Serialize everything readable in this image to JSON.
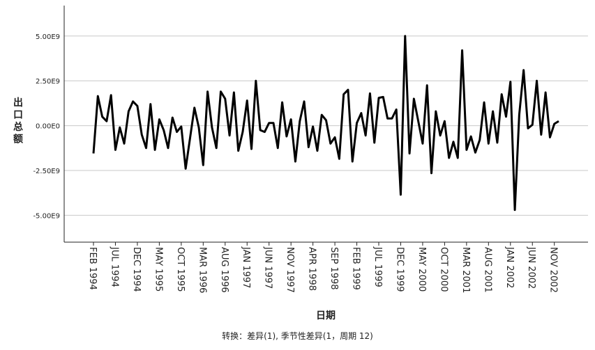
{
  "chart_data": {
    "type": "line",
    "ylabel": "出口总额",
    "xlabel": "日期",
    "footnote": "转换：差异(1), 季节性差异(1，周期 12)",
    "y_ticks": [
      5000000000.0,
      2500000000.0,
      0,
      -2500000000.0,
      -5000000000.0
    ],
    "y_tick_labels": [
      "5.00E9",
      "2.50E9",
      "0.00E0",
      "-2.50E9",
      "-5.00E9"
    ],
    "ylim": [
      -6500000000.0,
      6700000000.0
    ],
    "grid": true,
    "x_tick_labels": [
      "FEB 1994",
      "JUL 1994",
      "DEC 1994",
      "MAY 1995",
      "OCT 1995",
      "MAR 1996",
      "AUG 1996",
      "JAN 1997",
      "JUN 1997",
      "NOV 1997",
      "APR 1998",
      "SEP 1998",
      "FEB 1999",
      "JUL 1999",
      "DEC 1999",
      "MAY 2000",
      "OCT 2000",
      "MAR 2001",
      "AUG 2001",
      "JAN 2002",
      "JUN 2002",
      "NOV 2002"
    ],
    "x_start": "1994-02",
    "x_end": "2002-12",
    "series": [
      {
        "color": "#000000",
        "values": [
          -1550000000.0,
          1650000000.0,
          500000000.0,
          250000000.0,
          1700000000.0,
          -1350000000.0,
          -100000000.0,
          -1000000000.0,
          800000000.0,
          1350000000.0,
          1100000000.0,
          -500000000.0,
          -1250000000.0,
          1200000000.0,
          -1350000000.0,
          350000000.0,
          -250000000.0,
          -1250000000.0,
          450000000.0,
          -350000000.0,
          -50000000.0,
          -2400000000.0,
          -700000000.0,
          1000000000.0,
          -100000000.0,
          -2200000000.0,
          1900000000.0,
          -100000000.0,
          -1250000000.0,
          1900000000.0,
          1500000000.0,
          -550000000.0,
          1850000000.0,
          -1400000000.0,
          -350000000.0,
          1400000000.0,
          -1300000000.0,
          2500000000.0,
          -250000000.0,
          -350000000.0,
          150000000.0,
          150000000.0,
          -1250000000.0,
          1300000000.0,
          -600000000.0,
          350000000.0,
          -2000000000.0,
          250000000.0,
          1350000000.0,
          -1200000000.0,
          -50000000.0,
          -1400000000.0,
          600000000.0,
          300000000.0,
          -1000000000.0,
          -650000000.0,
          -1850000000.0,
          1750000000.0,
          2000000000.0,
          -2000000000.0,
          150000000.0,
          700000000.0,
          -550000000.0,
          1800000000.0,
          -950000000.0,
          1550000000.0,
          1600000000.0,
          400000000.0,
          400000000.0,
          900000000.0,
          -3850000000.0,
          5000000000.0,
          -1550000000.0,
          1500000000.0,
          250000000.0,
          -1000000000.0,
          2250000000.0,
          -2650000000.0,
          800000000.0,
          -550000000.0,
          250000000.0,
          -1800000000.0,
          -900000000.0,
          -1800000000.0,
          4200000000.0,
          -1350000000.0,
          -600000000.0,
          -1500000000.0,
          -800000000.0,
          1300000000.0,
          -1000000000.0,
          800000000.0,
          -950000000.0,
          1750000000.0,
          500000000.0,
          2450000000.0,
          -4700000000.0,
          600000000.0,
          3100000000.0,
          -150000000.0,
          50000000.0,
          2500000000.0,
          -500000000.0,
          1850000000.0,
          -650000000.0,
          100000000.0,
          250000000.0
        ]
      }
    ]
  }
}
